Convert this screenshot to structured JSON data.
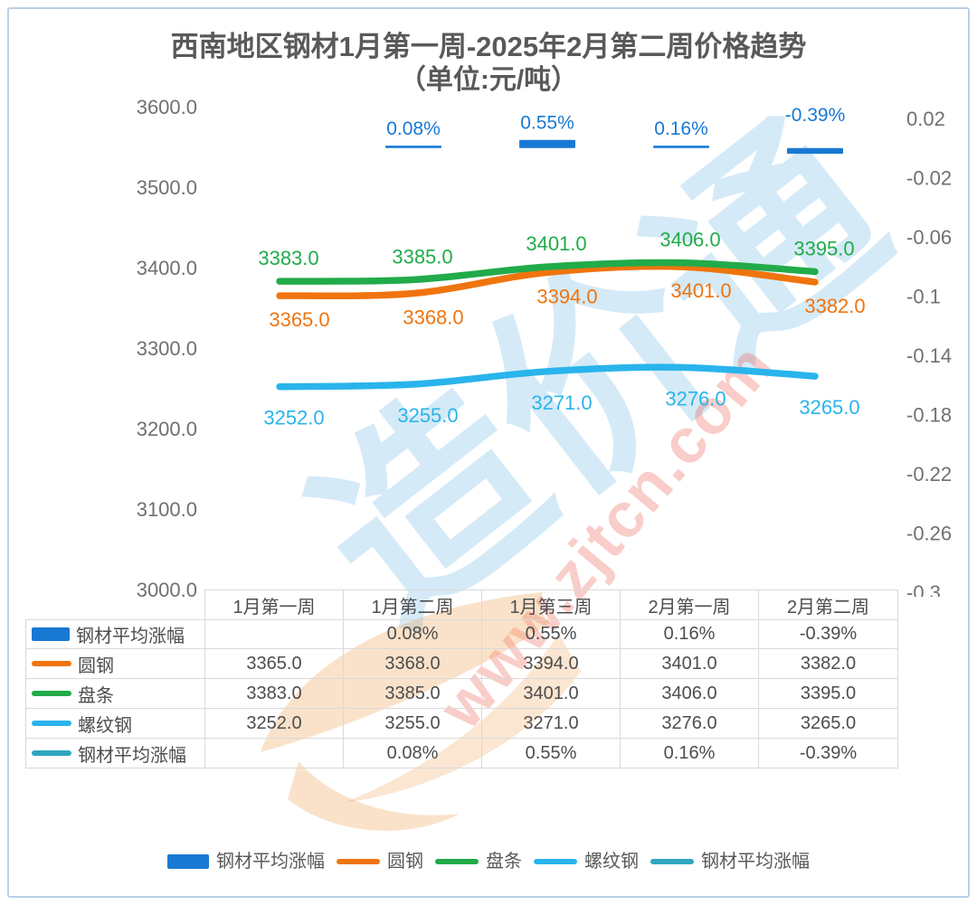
{
  "title": {
    "line1": "西南地区钢材1月第一周-2025年2月第二周价格趋势",
    "line2": "（单位:元/吨）",
    "color": "#595959"
  },
  "watermark": {
    "brand_text": "造价通",
    "url_text": "www.zjtcn.com",
    "brand_color": "rgba(46,150,216,0.20)",
    "url_color": "rgba(233,63,45,0.26)",
    "logo_color": "rgba(240,160,80,0.32)"
  },
  "chart_data": {
    "type": "line+bar combo",
    "title": "西南地区钢材1月第一周-2025年2月第二周价格趋势（单位:元/吨）",
    "categories": [
      "1月第一周",
      "1月第二周",
      "1月第三周",
      "2月第一周",
      "2月第二周"
    ],
    "grid": false,
    "legend_position": "bottom",
    "left_axis": {
      "min": 3000,
      "max": 3600,
      "tick_step": 100,
      "tick_labels": [
        "3600.0",
        "3500.0",
        "3400.0",
        "3300.0",
        "3200.0",
        "3100.0",
        "3000.0"
      ],
      "label_color": "#707070"
    },
    "right_axis": {
      "min": -0.3,
      "max": 0.02,
      "tick_step": 0.04,
      "tick_labels": [
        "0.02",
        "-0.02",
        "-0.06",
        "-0.1",
        "-0.14",
        "-0.18",
        "-0.22",
        "-0.26",
        "-0.3"
      ],
      "label_color": "#707070"
    },
    "series": [
      {
        "name": "钢材平均涨幅",
        "type": "bar",
        "axis": "right",
        "color": "#1879d3",
        "values": [
          null,
          0.0008,
          0.0055,
          0.0016,
          -0.0039
        ],
        "value_labels": [
          "",
          "0.08%",
          "0.55%",
          "0.16%",
          "-0.39%"
        ],
        "label_position": "above"
      },
      {
        "name": "圆钢",
        "type": "line",
        "axis": "left",
        "color": "#f0740e",
        "values": [
          3365,
          3368,
          3394,
          3401,
          3382
        ],
        "value_labels": [
          "3365.0",
          "3368.0",
          "3394.0",
          "3401.0",
          "3382.0"
        ],
        "label_position": "below",
        "label_offset": {
          "dx": 22,
          "dy": 34
        }
      },
      {
        "name": "盘条",
        "type": "line",
        "axis": "left",
        "color": "#21ab49",
        "values": [
          3383,
          3385,
          3401,
          3406,
          3395
        ],
        "value_labels": [
          "3383.0",
          "3385.0",
          "3401.0",
          "3406.0",
          "3395.0"
        ],
        "label_position": "above",
        "label_offset": {
          "dx": 10,
          "dy": -18
        }
      },
      {
        "name": "螺纹钢",
        "type": "line",
        "axis": "left",
        "color": "#29b4ec",
        "values": [
          3252,
          3255,
          3271,
          3276,
          3265
        ],
        "value_labels": [
          "3252.0",
          "3255.0",
          "3271.0",
          "3276.0",
          "3265.0"
        ],
        "label_position": "below",
        "label_offset": {
          "dx": 16,
          "dy": 42
        }
      },
      {
        "name": "钢材平均涨幅",
        "type": "line",
        "axis": "right",
        "color": "#2fa7bf",
        "values": [
          null,
          0.0008,
          0.0055,
          0.0016,
          -0.0039
        ],
        "value_labels": [
          "",
          "0.08%",
          "0.55%",
          "0.16%",
          "-0.39%"
        ],
        "label_position": "none",
        "draw_line": false
      }
    ]
  },
  "table": {
    "columns": [
      "",
      "1月第一周",
      "1月第二周",
      "1月第三周",
      "2月第一周",
      "2月第二周"
    ],
    "rows": [
      {
        "name": "钢材平均涨幅",
        "swatch": "bar",
        "color": "#1879d3",
        "cells": [
          "",
          "0.08%",
          "0.55%",
          "0.16%",
          "-0.39%"
        ]
      },
      {
        "name": "圆钢",
        "swatch": "line",
        "color": "#f0740e",
        "cells": [
          "3365.0",
          "3368.0",
          "3394.0",
          "3401.0",
          "3382.0"
        ]
      },
      {
        "name": "盘条",
        "swatch": "line",
        "color": "#21ab49",
        "cells": [
          "3383.0",
          "3385.0",
          "3401.0",
          "3406.0",
          "3395.0"
        ]
      },
      {
        "name": "螺纹钢",
        "swatch": "line",
        "color": "#29b4ec",
        "cells": [
          "3252.0",
          "3255.0",
          "3271.0",
          "3276.0",
          "3265.0"
        ]
      },
      {
        "name": "钢材平均涨幅",
        "swatch": "line",
        "color": "#2fa7bf",
        "cells": [
          "",
          "0.08%",
          "0.55%",
          "0.16%",
          "-0.39%"
        ]
      }
    ]
  },
  "legend": {
    "items": [
      {
        "label": "钢材平均涨幅",
        "swatch": "bar",
        "color": "#1879d3"
      },
      {
        "label": "圆钢",
        "swatch": "line",
        "color": "#f0740e"
      },
      {
        "label": "盘条",
        "swatch": "line",
        "color": "#21ab49"
      },
      {
        "label": "螺纹钢",
        "swatch": "line",
        "color": "#29b4ec"
      },
      {
        "label": "钢材平均涨幅",
        "swatch": "line",
        "color": "#2fa7bf"
      }
    ]
  }
}
